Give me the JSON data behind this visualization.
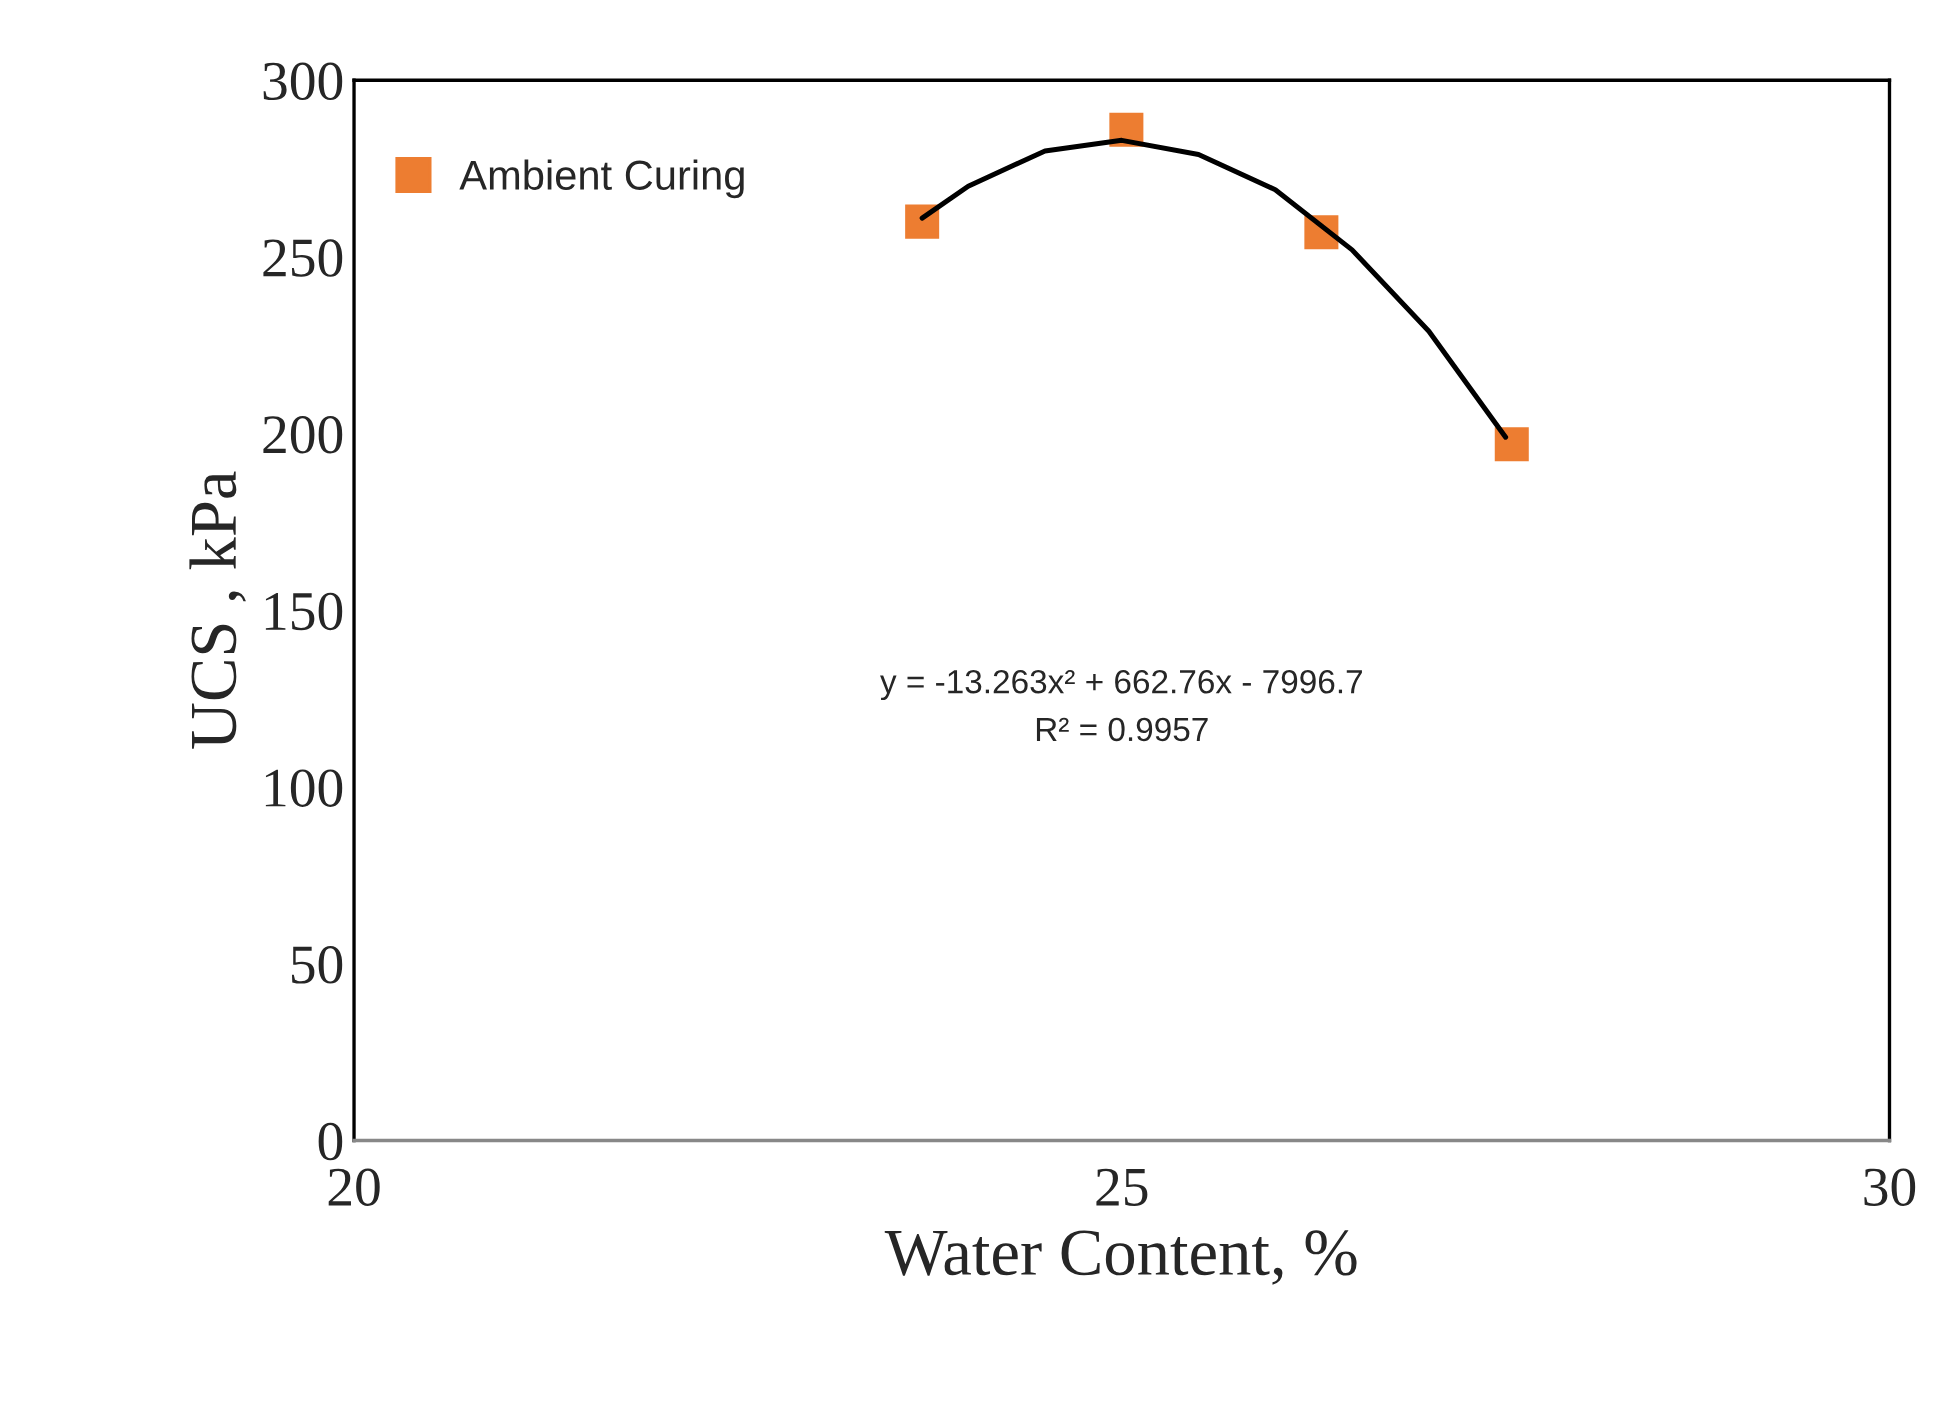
{
  "chart_data": {
    "type": "scatter",
    "xlabel": "Water Content, %",
    "ylabel": "UCS , kPa",
    "xlim": [
      20,
      30
    ],
    "xticks": [
      20,
      25,
      30
    ],
    "ylim": [
      0,
      300
    ],
    "yticks": [
      0,
      50,
      100,
      150,
      200,
      250,
      300
    ],
    "grid": false,
    "legend": "top left",
    "series": [
      {
        "name": "Ambient Curing",
        "marker": "square",
        "color": "#ed7d31",
        "x": [
          23.7,
          25.03,
          26.3,
          27.54
        ],
        "values": [
          260,
          286,
          257,
          197
        ]
      },
      {
        "type": "line",
        "color": "#000000",
        "x": [
          23.7,
          24.0,
          24.5,
          25.0,
          25.5,
          26.0,
          26.5,
          27.0,
          27.5
        ],
        "values": [
          261,
          270,
          280,
          283,
          279,
          269,
          252,
          229,
          199
        ]
      }
    ],
    "annotations": [
      "y = -13.263x² + 662.76x - 7996.7",
      "R² = 0.9957"
    ]
  }
}
